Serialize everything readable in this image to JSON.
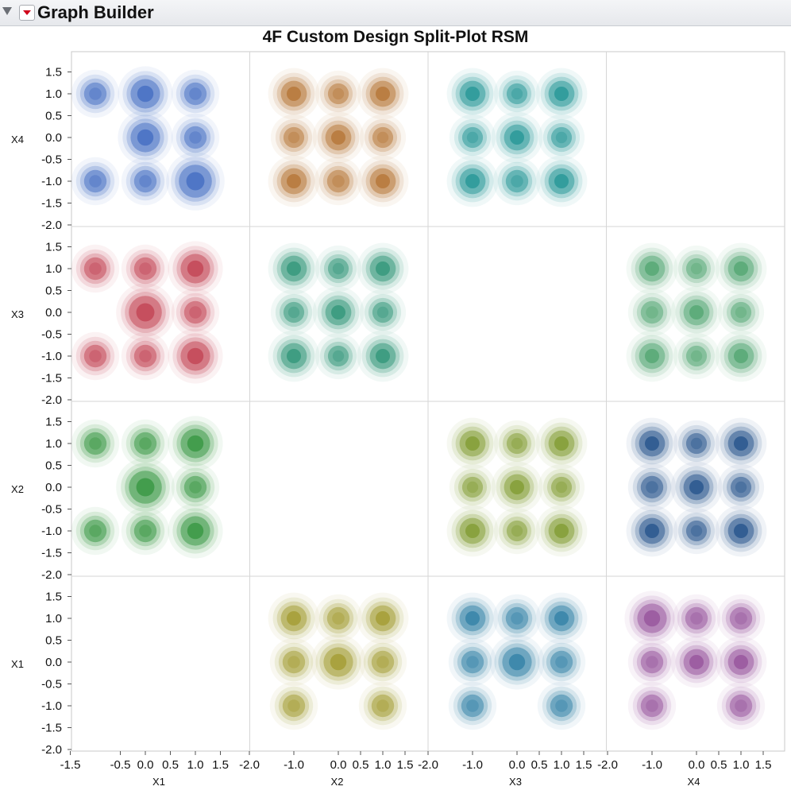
{
  "app": {
    "title": "Graph Builder"
  },
  "chart_data": {
    "type": "heatmap",
    "subtype": "scatterplot-matrix-density-contours",
    "title": "4F Custom Design Split-Plot RSM",
    "x_axis_labels": [
      "X1",
      "X2",
      "X3",
      "X4"
    ],
    "y_axis_labels": [
      "X4",
      "X3",
      "X2",
      "X1"
    ],
    "ylim": [
      -2.0,
      1.8
    ],
    "y_ticks": [
      "1.5",
      "1.0",
      "0.5",
      "0.0",
      "-0.5",
      "-1.0",
      "-1.5",
      "-2.0"
    ],
    "x_ticks": [
      [
        "-1.5",
        "-0.5",
        "0.0",
        "0.5",
        "1.0",
        "1.5"
      ],
      [
        "-2.0",
        "-1.0",
        "0.0",
        "0.5",
        "1.0",
        "1.5"
      ],
      [
        "-2.0",
        "-1.0",
        "0.0",
        "0.5",
        "1.0",
        "1.5"
      ],
      [
        "-2.0",
        "-1.0",
        "0.0",
        "0.5",
        "1.0",
        "1.5"
      ]
    ],
    "grid": false,
    "panels": [
      {
        "x": "X1",
        "y": "X4",
        "color": "#4a72c4",
        "points": [
          [
            -1,
            1,
            1
          ],
          [
            0,
            1,
            3
          ],
          [
            1,
            1,
            1
          ],
          [
            0,
            0,
            3
          ],
          [
            1,
            0,
            1
          ],
          [
            -1,
            -1,
            1
          ],
          [
            0,
            -1,
            1
          ],
          [
            1,
            -1,
            4
          ]
        ]
      },
      {
        "x": "X2",
        "y": "X4",
        "color": "#b87a3e",
        "points": [
          [
            -1,
            1,
            2
          ],
          [
            0,
            1,
            0.5
          ],
          [
            1,
            1,
            2
          ],
          [
            -1,
            0,
            0.5
          ],
          [
            0,
            0,
            2
          ],
          [
            1,
            0,
            0.5
          ],
          [
            -1,
            -1,
            2
          ],
          [
            0,
            -1,
            1
          ],
          [
            1,
            -1,
            2
          ]
        ]
      },
      {
        "x": "X3",
        "y": "X4",
        "color": "#2e9a9a",
        "points": [
          [
            -1,
            1,
            2
          ],
          [
            0,
            1,
            0.5
          ],
          [
            1,
            1,
            2
          ],
          [
            -1,
            0,
            0.5
          ],
          [
            0,
            0,
            2
          ],
          [
            1,
            0,
            0.5
          ],
          [
            -1,
            -1,
            2
          ],
          [
            0,
            -1,
            1
          ],
          [
            1,
            -1,
            2
          ]
        ]
      },
      {
        "x": "X4",
        "y": "X4",
        "color": "#000000",
        "points": []
      },
      {
        "x": "X1",
        "y": "X3",
        "color": "#c44a5a",
        "points": [
          [
            -1,
            1,
            1
          ],
          [
            0,
            1,
            1
          ],
          [
            1,
            1,
            3
          ],
          [
            0,
            0,
            4
          ],
          [
            1,
            0,
            1
          ],
          [
            -1,
            -1,
            1
          ],
          [
            0,
            -1,
            1
          ],
          [
            1,
            -1,
            3
          ]
        ]
      },
      {
        "x": "X2",
        "y": "X3",
        "color": "#3a9a7e",
        "points": [
          [
            -1,
            1,
            2
          ],
          [
            0,
            1,
            0.5
          ],
          [
            1,
            1,
            2
          ],
          [
            -1,
            0,
            0.5
          ],
          [
            0,
            0,
            2
          ],
          [
            1,
            0,
            0.5
          ],
          [
            -1,
            -1,
            2
          ],
          [
            0,
            -1,
            0.5
          ],
          [
            1,
            -1,
            2
          ]
        ]
      },
      {
        "x": "X3",
        "y": "X3",
        "color": "#000000",
        "points": []
      },
      {
        "x": "X4",
        "y": "X3",
        "color": "#5aaa78",
        "points": [
          [
            -1,
            1,
            2
          ],
          [
            0,
            1,
            0.5
          ],
          [
            1,
            1,
            2
          ],
          [
            -1,
            0,
            1
          ],
          [
            0,
            0,
            2
          ],
          [
            1,
            0,
            0.5
          ],
          [
            -1,
            -1,
            2
          ],
          [
            0,
            -1,
            0.5
          ],
          [
            1,
            -1,
            2
          ]
        ]
      },
      {
        "x": "X1",
        "y": "X2",
        "color": "#3e9a48",
        "points": [
          [
            -1,
            1,
            1
          ],
          [
            0,
            1,
            1
          ],
          [
            1,
            1,
            3
          ],
          [
            0,
            0,
            4
          ],
          [
            1,
            0,
            1
          ],
          [
            -1,
            -1,
            1
          ],
          [
            0,
            -1,
            1
          ],
          [
            1,
            -1,
            3
          ]
        ]
      },
      {
        "x": "X2",
        "y": "X2",
        "color": "#000000",
        "points": []
      },
      {
        "x": "X3",
        "y": "X2",
        "color": "#86a03a",
        "points": [
          [
            -1,
            1,
            2
          ],
          [
            0,
            1,
            0.5
          ],
          [
            1,
            1,
            2
          ],
          [
            -1,
            0,
            0.5
          ],
          [
            0,
            0,
            2
          ],
          [
            1,
            0,
            0.5
          ],
          [
            -1,
            -1,
            2
          ],
          [
            0,
            -1,
            0.5
          ],
          [
            1,
            -1,
            2
          ]
        ]
      },
      {
        "x": "X4",
        "y": "X2",
        "color": "#2e5a90",
        "points": [
          [
            -1,
            1,
            2
          ],
          [
            0,
            1,
            0.5
          ],
          [
            1,
            1,
            2
          ],
          [
            -1,
            0,
            1
          ],
          [
            0,
            0,
            2
          ],
          [
            1,
            0,
            0.5
          ],
          [
            -1,
            -1,
            2
          ],
          [
            0,
            -1,
            0.5
          ],
          [
            1,
            -1,
            2
          ]
        ]
      },
      {
        "x": "X1",
        "y": "X1",
        "color": "#000000",
        "points": []
      },
      {
        "x": "X2",
        "y": "X1",
        "color": "#a6a03a",
        "points": [
          [
            -1,
            1,
            2
          ],
          [
            0,
            1,
            1
          ],
          [
            1,
            1,
            2
          ],
          [
            -1,
            0,
            1
          ],
          [
            0,
            0,
            3
          ],
          [
            1,
            0,
            1
          ],
          [
            -1,
            -1,
            1
          ],
          [
            1,
            -1,
            1
          ]
        ]
      },
      {
        "x": "X3",
        "y": "X1",
        "color": "#3a86aa",
        "points": [
          [
            -1,
            1,
            2
          ],
          [
            0,
            1,
            1
          ],
          [
            1,
            1,
            2
          ],
          [
            -1,
            0,
            1
          ],
          [
            0,
            0,
            3
          ],
          [
            1,
            0,
            1
          ],
          [
            -1,
            -1,
            1
          ],
          [
            1,
            -1,
            1
          ]
        ]
      },
      {
        "x": "X4",
        "y": "X1",
        "color": "#9a5aa0",
        "points": [
          [
            -1,
            1,
            3
          ],
          [
            0,
            1,
            1
          ],
          [
            1,
            1,
            1
          ],
          [
            -1,
            0,
            1
          ],
          [
            0,
            0,
            2
          ],
          [
            1,
            0,
            2
          ],
          [
            -1,
            -1,
            1
          ],
          [
            1,
            -1,
            1
          ]
        ]
      }
    ]
  }
}
